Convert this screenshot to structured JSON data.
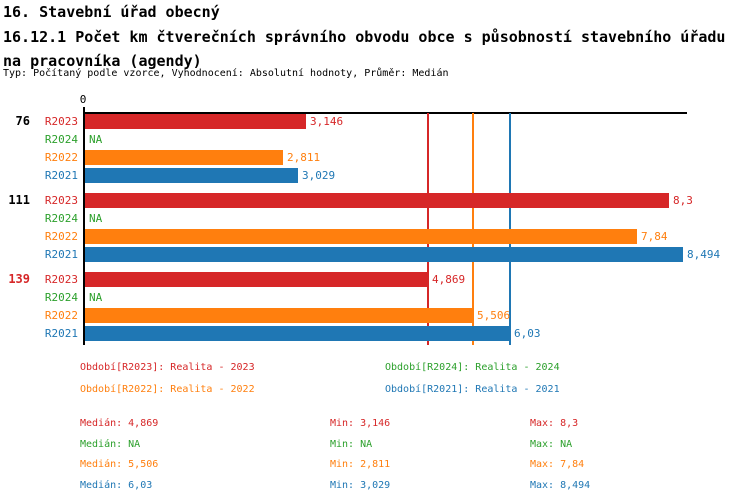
{
  "header": {
    "title": "16. Stavební úřad obecný",
    "subtitle": "16.12.1 Počet km čtverečních správního obvodu obce s působností stavebního úřadu na pracovníka (agendy)",
    "meta": "Typ: Počítaný podle vzorce, Vyhodnocení: Absolutní hodnoty, Průměr: Medián"
  },
  "colors": {
    "red": "#d62728",
    "green": "#2ca02c",
    "orange": "#ff7f0e",
    "blue": "#1f77b4",
    "black": "#000000"
  },
  "chart_data": {
    "type": "bar",
    "orientation": "horizontal",
    "x_axis": {
      "zero_label": "0",
      "xlim": [
        0,
        8.6
      ],
      "gridlines": false
    },
    "series_colors": {
      "R2023": "red",
      "R2024": "green",
      "R2022": "orange",
      "R2021": "blue"
    },
    "groups": [
      {
        "label": "76",
        "label_color": "black",
        "bars": [
          {
            "series": "R2023",
            "value": 3.146,
            "display": "3,146"
          },
          {
            "series": "R2024",
            "value": null,
            "display": "NA"
          },
          {
            "series": "R2022",
            "value": 2.811,
            "display": "2,811"
          },
          {
            "series": "R2021",
            "value": 3.029,
            "display": "3,029"
          }
        ]
      },
      {
        "label": "111",
        "label_color": "black",
        "bars": [
          {
            "series": "R2023",
            "value": 8.3,
            "display": "8,3"
          },
          {
            "series": "R2024",
            "value": null,
            "display": "NA"
          },
          {
            "series": "R2022",
            "value": 7.84,
            "display": "7,84"
          },
          {
            "series": "R2021",
            "value": 8.494,
            "display": "8,494"
          }
        ]
      },
      {
        "label": "139",
        "label_color": "red",
        "bars": [
          {
            "series": "R2023",
            "value": 4.869,
            "display": "4,869"
          },
          {
            "series": "R2024",
            "value": null,
            "display": "NA"
          },
          {
            "series": "R2022",
            "value": 5.506,
            "display": "5,506"
          },
          {
            "series": "R2021",
            "value": 6.03,
            "display": "6,03"
          }
        ]
      }
    ],
    "median_lines": [
      {
        "series": "R2023",
        "value": 4.869,
        "color": "red"
      },
      {
        "series": "R2022",
        "value": 5.506,
        "color": "orange"
      },
      {
        "series": "R2021",
        "value": 6.03,
        "color": "blue"
      }
    ]
  },
  "legend": [
    {
      "label": "Období[R2023]: Realita - 2023",
      "color": "red"
    },
    {
      "label": "Období[R2024]: Realita - 2024",
      "color": "green"
    },
    {
      "label": "Období[R2022]: Realita - 2022",
      "color": "orange"
    },
    {
      "label": "Období[R2021]: Realita - 2021",
      "color": "blue"
    }
  ],
  "stats": {
    "labels": {
      "median": "Medián",
      "min": "Min",
      "max": "Max"
    },
    "rows": [
      {
        "color": "red",
        "median": "4,869",
        "min": "3,146",
        "max": "8,3"
      },
      {
        "color": "green",
        "median": "NA",
        "min": "NA",
        "max": "NA"
      },
      {
        "color": "orange",
        "median": "5,506",
        "min": "2,811",
        "max": "7,84"
      },
      {
        "color": "blue",
        "median": "6,03",
        "min": "3,029",
        "max": "8,494"
      }
    ]
  }
}
